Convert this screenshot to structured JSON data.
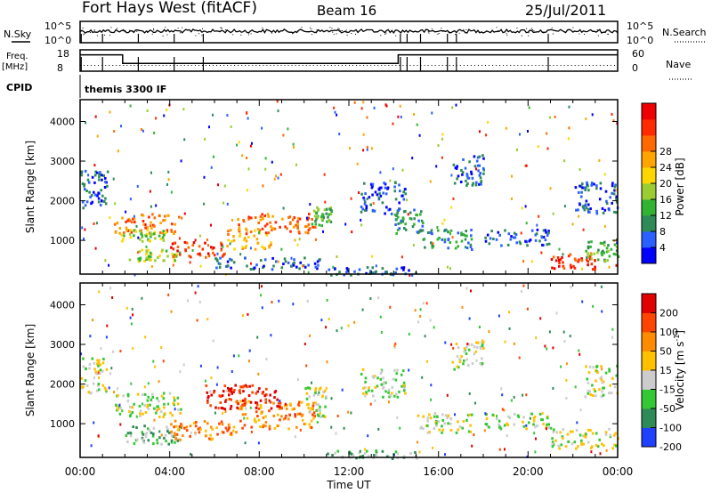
{
  "header": {
    "title": "Fort Hays West (fitACF)",
    "beam": "Beam 16",
    "date": "25/Jul/2011"
  },
  "top_panels": {
    "nsky": {
      "label": "N.Sky",
      "tick_top": "10^5",
      "tick_bottom": "10^0",
      "right_label": "N.Search",
      "right_tick_top": "10^5",
      "right_tick_bottom": "10^0"
    },
    "freq": {
      "label_top": "Freq.",
      "label_bottom": "[MHz]",
      "tick_top": "18",
      "tick_bottom": "8",
      "right_label": "Nave",
      "right_tick_top": "60",
      "right_tick_bottom": "0",
      "steps": [
        {
          "from": 0,
          "to": 1.9,
          "value": 17
        },
        {
          "from": 1.9,
          "to": 14.2,
          "value": 11
        },
        {
          "from": 14.2,
          "to": 24,
          "value": 17
        }
      ],
      "nave_level": 10
    },
    "cpid": {
      "label": "CPID",
      "text": "themis 3300 IF"
    }
  },
  "chart_data": [
    {
      "type": "heatmap",
      "name": "power",
      "ylabel": "Slant Range [km]",
      "yticks": [
        "1000",
        "2000",
        "3000",
        "4000"
      ],
      "ylim": [
        150,
        4550
      ],
      "xlim": [
        0,
        24
      ],
      "colorbar": {
        "label": "Power [dB]",
        "ticks": [
          "4",
          "8",
          "12",
          "16",
          "20",
          "24",
          "28"
        ],
        "colors": [
          "#0000ff",
          "#2a60ff",
          "#2e8b57",
          "#32b432",
          "#9acd32",
          "#ffd700",
          "#ffa500",
          "#ff6a00",
          "#ff2a00",
          "#ee0000"
        ]
      },
      "regions": [
        {
          "t0": 0.0,
          "t1": 1.2,
          "r0": 1700,
          "r1": 2800,
          "lvl": 1
        },
        {
          "t0": 1.5,
          "t1": 4.5,
          "r0": 1200,
          "r1": 1700,
          "lvl": 7
        },
        {
          "t0": 1.8,
          "t1": 3.8,
          "r0": 1000,
          "r1": 1300,
          "lvl": 4
        },
        {
          "t0": 2.0,
          "t1": 4.5,
          "r0": 500,
          "r1": 800,
          "lvl": 4
        },
        {
          "t0": 4.0,
          "t1": 6.5,
          "r0": 600,
          "r1": 1000,
          "lvl": 8
        },
        {
          "t0": 6.5,
          "t1": 8.5,
          "r0": 800,
          "r1": 1300,
          "lvl": 6
        },
        {
          "t0": 7.0,
          "t1": 10.5,
          "r0": 1200,
          "r1": 1700,
          "lvl": 7
        },
        {
          "t0": 6.0,
          "t1": 10.8,
          "r0": 300,
          "r1": 600,
          "lvl": 1
        },
        {
          "t0": 10.3,
          "t1": 11.2,
          "r0": 1400,
          "r1": 1900,
          "lvl": 3
        },
        {
          "t0": 11.0,
          "t1": 15.0,
          "r0": 150,
          "r1": 350,
          "lvl": 1
        },
        {
          "t0": 12.5,
          "t1": 14.5,
          "r0": 1700,
          "r1": 2500,
          "lvl": 1
        },
        {
          "t0": 14.0,
          "t1": 15.3,
          "r0": 1200,
          "r1": 1800,
          "lvl": 2
        },
        {
          "t0": 15.0,
          "t1": 17.5,
          "r0": 800,
          "r1": 1300,
          "lvl": 2
        },
        {
          "t0": 16.5,
          "t1": 18.0,
          "r0": 2400,
          "r1": 3200,
          "lvl": 1
        },
        {
          "t0": 18.0,
          "t1": 21.0,
          "r0": 900,
          "r1": 1300,
          "lvl": 1
        },
        {
          "t0": 21.0,
          "t1": 23.0,
          "r0": 300,
          "r1": 700,
          "lvl": 8
        },
        {
          "t0": 22.5,
          "t1": 24.0,
          "r0": 500,
          "r1": 1000,
          "lvl": 3
        },
        {
          "t0": 22.0,
          "t1": 24.0,
          "r0": 1700,
          "r1": 2500,
          "lvl": 1
        }
      ]
    },
    {
      "type": "heatmap",
      "name": "velocity",
      "ylabel": "Slant Range [km]",
      "yticks": [
        "1000",
        "2000",
        "3000",
        "4000"
      ],
      "ylim": [
        150,
        4550
      ],
      "xlim": [
        0,
        24
      ],
      "xlabel": "Time UT",
      "xticks": [
        "00:00",
        "04:00",
        "08:00",
        "12:00",
        "16:00",
        "20:00",
        "00:00"
      ],
      "colorbar": {
        "label": "Velocity [m s",
        "label_sup": "-1",
        "label_end": "]",
        "ticks": [
          "200",
          "100",
          "50",
          "15",
          "-15",
          "-50",
          "-100",
          "-200"
        ],
        "colors": [
          "#2040ff",
          "#2e8b57",
          "#34c834",
          "#cccccc",
          "#ffc000",
          "#ff8c00",
          "#ff4500",
          "#e00000"
        ]
      },
      "regions": [
        {
          "t0": 0.0,
          "t1": 1.2,
          "r0": 1800,
          "r1": 2700,
          "lvl": 3
        },
        {
          "t0": 1.5,
          "t1": 4.5,
          "r0": 1200,
          "r1": 1800,
          "lvl": 3
        },
        {
          "t0": 2.0,
          "t1": 4.5,
          "r0": 500,
          "r1": 1000,
          "lvl": 2
        },
        {
          "t0": 4.0,
          "t1": 7.0,
          "r0": 600,
          "r1": 1100,
          "lvl": 5
        },
        {
          "t0": 7.0,
          "t1": 10.5,
          "r0": 900,
          "r1": 1600,
          "lvl": 5
        },
        {
          "t0": 5.5,
          "t1": 9.0,
          "r0": 1400,
          "r1": 2000,
          "lvl": 7
        },
        {
          "t0": 10.0,
          "t1": 11.0,
          "r0": 1200,
          "r1": 2000,
          "lvl": 3
        },
        {
          "t0": 11.0,
          "t1": 15.0,
          "r0": 150,
          "r1": 350,
          "lvl": 2
        },
        {
          "t0": 12.5,
          "t1": 14.5,
          "r0": 1700,
          "r1": 2400,
          "lvl": 3
        },
        {
          "t0": 15.0,
          "t1": 17.5,
          "r0": 800,
          "r1": 1300,
          "lvl": 3
        },
        {
          "t0": 16.5,
          "t1": 18.0,
          "r0": 2400,
          "r1": 3100,
          "lvl": 3
        },
        {
          "t0": 18.0,
          "t1": 21.0,
          "r0": 900,
          "r1": 1300,
          "lvl": 3
        },
        {
          "t0": 21.0,
          "t1": 24.0,
          "r0": 400,
          "r1": 900,
          "lvl": 3
        },
        {
          "t0": 22.5,
          "t1": 24.0,
          "r0": 1700,
          "r1": 2500,
          "lvl": 3
        }
      ]
    }
  ]
}
